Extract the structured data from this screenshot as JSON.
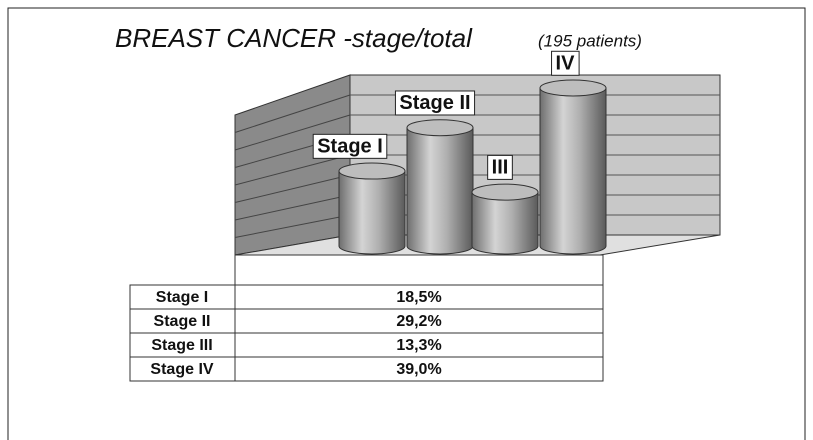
{
  "chart_data": {
    "type": "cylinder",
    "title": "BREAST CANCER -stage/total",
    "subtitle": "(195 patients)",
    "categories": [
      "Stage I",
      "Stage II",
      "Stage III",
      "Stage IV"
    ],
    "bar_labels": [
      "Stage I",
      "Stage II",
      "III",
      "IV"
    ],
    "values": [
      18.5,
      29.2,
      13.3,
      39.0
    ],
    "value_labels": [
      "18,5%",
      "29,2%",
      "13,3%",
      "39,0%"
    ],
    "color": "#9a9a9a"
  }
}
